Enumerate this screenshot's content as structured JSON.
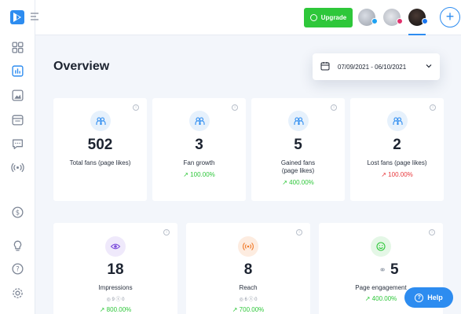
{
  "header": {
    "upgrade_label": "Upgrade",
    "add_label": "+"
  },
  "page": {
    "title": "Overview",
    "date_range": "07/09/2021 - 06/10/2021"
  },
  "stats_row1": [
    {
      "value": "502",
      "label": "Total fans (page likes)",
      "change": ""
    },
    {
      "value": "3",
      "label": "Fan growth",
      "change": "100.00%"
    },
    {
      "value": "5",
      "label": "Gained fans (page likes)",
      "change": "400.00%"
    },
    {
      "value": "2",
      "label": "Lost fans (page likes)",
      "change": "100.00%"
    }
  ],
  "stats_row2": [
    {
      "value": "18",
      "label": "Impressions",
      "sub_a": "9",
      "sub_b": "0",
      "change": "800.00%"
    },
    {
      "value": "8",
      "label": "Reach",
      "sub_a": "6",
      "sub_b": "0",
      "change": "700.00%"
    },
    {
      "value": "5",
      "label": "Page engagement",
      "change": "400.00%"
    }
  ],
  "help": {
    "label": "Help"
  },
  "colors": {
    "accent": "#2d8cf0",
    "positive": "#2ec73a",
    "negative": "#e8373b"
  },
  "icons": {
    "logo": "kampaign-logo",
    "fans": "users-icon",
    "impressions": "eye-icon",
    "reach": "broadcast-icon",
    "engagement": "smile-icon"
  }
}
